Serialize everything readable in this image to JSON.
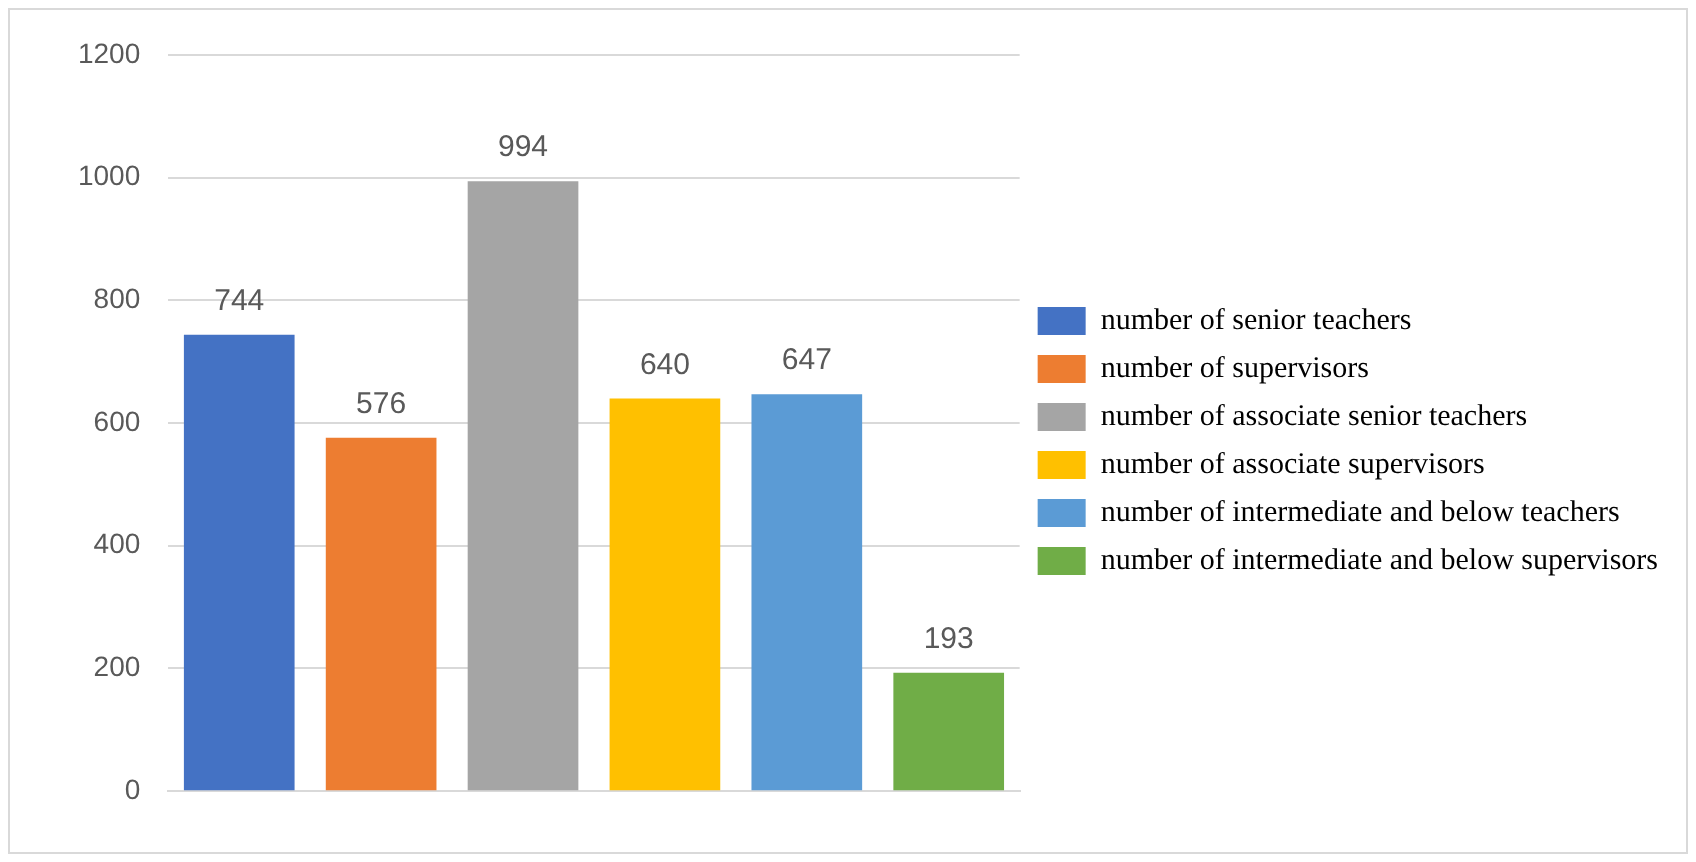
{
  "chart_data": {
    "type": "bar",
    "categories": [
      null
    ],
    "series": [
      {
        "name": "number of senior teachers",
        "color": "#4472c4",
        "values": [
          744
        ]
      },
      {
        "name": "number of supervisors",
        "color": "#ed7d31",
        "values": [
          576
        ]
      },
      {
        "name": "number of associate senior teachers",
        "color": "#a5a5a5",
        "values": [
          994
        ]
      },
      {
        "name": "number of associate supervisors",
        "color": "#ffc000",
        "values": [
          640
        ]
      },
      {
        "name": "number of intermediate and below teachers",
        "color": "#5b9bd5",
        "values": [
          647
        ]
      },
      {
        "name": "number of intermediate and below supervisors",
        "color": "#70ad47",
        "values": [
          193
        ]
      }
    ],
    "ylim": [
      0,
      1200
    ],
    "yticks": [
      0,
      200,
      400,
      600,
      800,
      1000,
      1200
    ],
    "grid": "y",
    "legend": "right",
    "data_labels": true
  }
}
